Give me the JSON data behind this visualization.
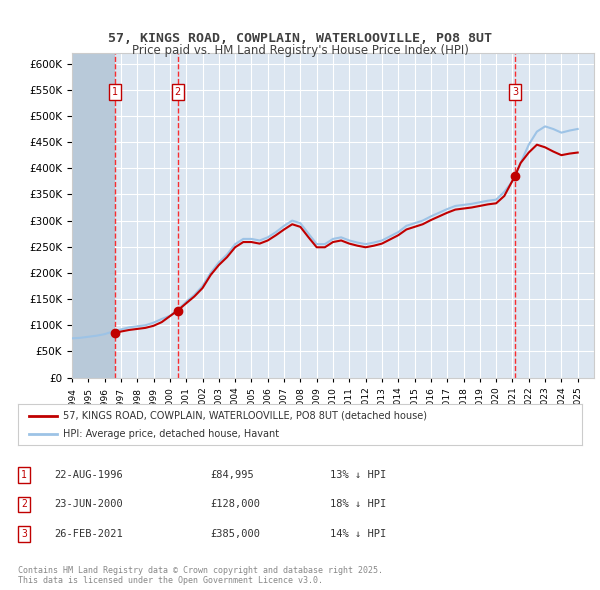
{
  "title_line1": "57, KINGS ROAD, COWPLAIN, WATERLOOVILLE, PO8 8UT",
  "title_line2": "Price paid vs. HM Land Registry's House Price Index (HPI)",
  "ylabel": "",
  "background_color": "#ffffff",
  "plot_bg_color": "#dce6f1",
  "hatch_color": "#b8c9d9",
  "grid_color": "#ffffff",
  "line1_color": "#c00000",
  "line2_color": "#9dc3e6",
  "transactions": [
    {
      "date": "1996-08-22",
      "price": 84995,
      "label": "1"
    },
    {
      "date": "2000-06-23",
      "price": 128000,
      "label": "2"
    },
    {
      "date": "2021-02-26",
      "price": 385000,
      "label": "3"
    }
  ],
  "table_rows": [
    {
      "num": "1",
      "date": "22-AUG-1996",
      "price": "£84,995",
      "note": "13% ↓ HPI"
    },
    {
      "num": "2",
      "date": "23-JUN-2000",
      "price": "£128,000",
      "note": "18% ↓ HPI"
    },
    {
      "num": "3",
      "date": "26-FEB-2021",
      "price": "£385,000",
      "note": "14% ↓ HPI"
    }
  ],
  "legend_line1": "57, KINGS ROAD, COWPLAIN, WATERLOOVILLE, PO8 8UT (detached house)",
  "legend_line2": "HPI: Average price, detached house, Havant",
  "footer": "Contains HM Land Registry data © Crown copyright and database right 2025.\nThis data is licensed under the Open Government Licence v3.0.",
  "ylim": [
    0,
    620000
  ],
  "yticks": [
    0,
    50000,
    100000,
    150000,
    200000,
    250000,
    300000,
    350000,
    400000,
    450000,
    500000,
    550000,
    600000
  ],
  "xstart_year": 1994,
  "xend_year": 2026
}
